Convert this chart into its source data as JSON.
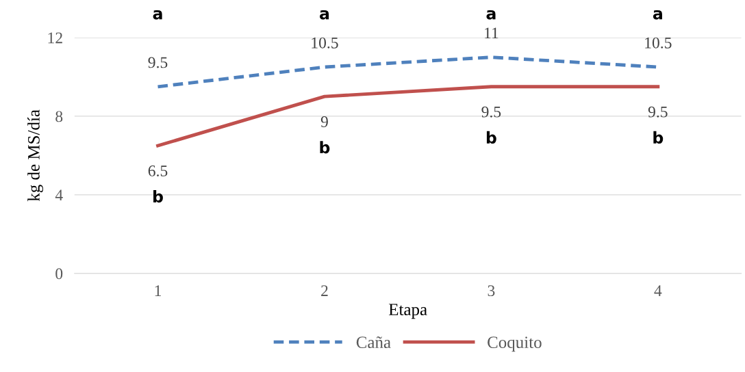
{
  "chart_data": {
    "type": "line",
    "xlabel": "Etapa",
    "ylabel": "kg de MS/día",
    "categories": [
      "1",
      "2",
      "3",
      "4"
    ],
    "series": [
      {
        "name": "Caña",
        "color": "#4f81bd",
        "line_style": "dashed",
        "values": [
          9.5,
          10.5,
          11,
          10.5
        ]
      },
      {
        "name": "Coquito",
        "color": "#c0504d",
        "line_style": "solid",
        "values": [
          6.5,
          9,
          9.5,
          9.5
        ]
      }
    ],
    "ylim": [
      0,
      12
    ],
    "yticks": [
      0,
      4,
      8,
      12
    ],
    "grid": "y",
    "legend": "bottom",
    "marker": "none",
    "data_labels": true,
    "annotations": [
      "a",
      "a",
      "a",
      "a",
      "b",
      "b",
      "b",
      "b"
    ]
  }
}
